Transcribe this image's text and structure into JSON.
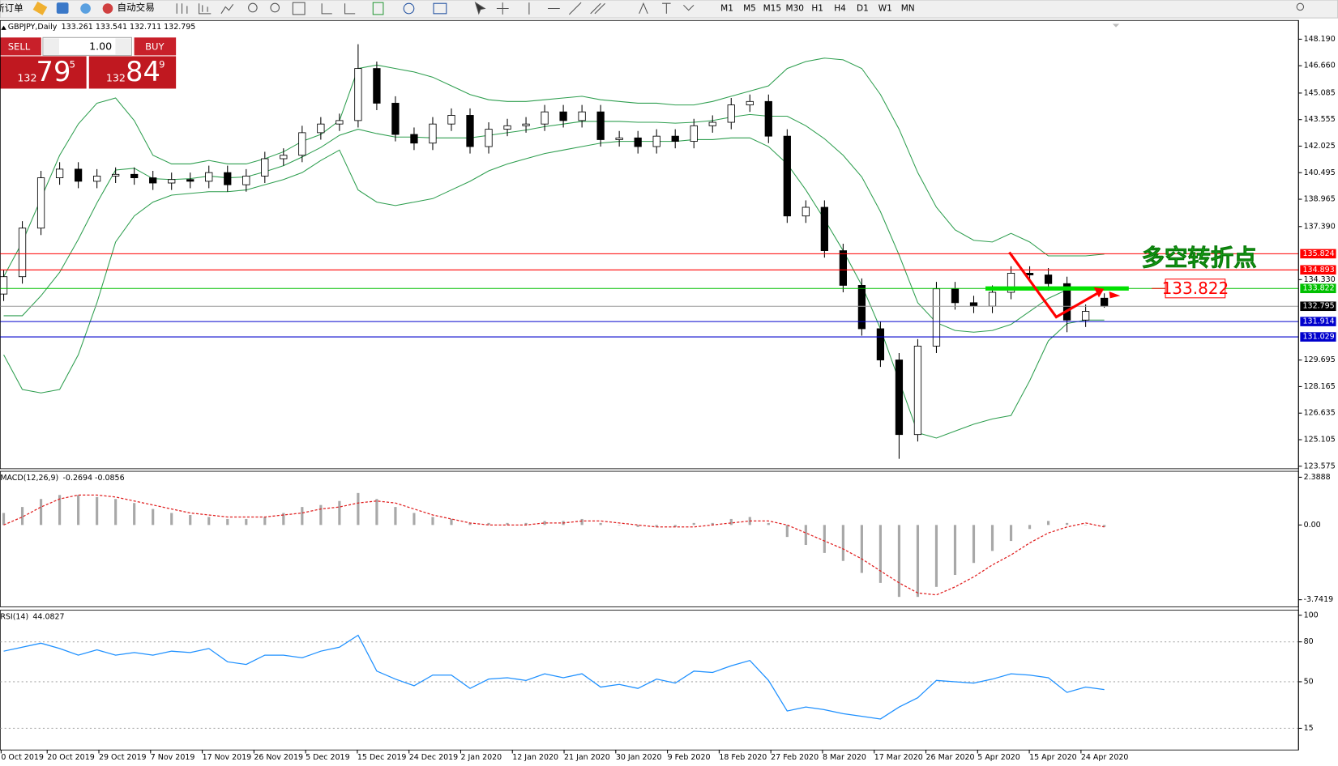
{
  "toolbar": {
    "new_order": "新订单",
    "auto_trading": "自动交易",
    "timeframes": [
      "M1",
      "M5",
      "M15",
      "M30",
      "H1",
      "H4",
      "D1",
      "W1",
      "MN"
    ]
  },
  "trade_panel": {
    "sell": "SELL",
    "buy": "BUY",
    "lots": "1.00",
    "sell_price": {
      "big": "132",
      "main": "79",
      "pip": "5"
    },
    "buy_price": {
      "big": "132",
      "main": "84",
      "pip": "9"
    }
  },
  "chart_data": [
    {
      "type": "candlestick",
      "title": "GBPJPY,Daily",
      "header_values": [
        133.261,
        133.541,
        132.711,
        132.795
      ],
      "open": [
        133.5,
        134.5,
        137.3,
        140.2,
        140.7,
        140.0,
        140.3,
        140.4,
        140.2,
        139.9,
        140.1,
        140.0,
        140.5,
        139.8,
        140.3,
        141.3,
        141.5,
        142.8,
        143.3,
        143.5,
        146.5,
        144.5,
        142.7,
        142.2,
        143.3,
        143.8,
        142.0,
        143.0,
        143.2,
        143.3,
        144.0,
        143.5,
        144.0,
        142.4,
        142.5,
        142.0,
        142.6,
        142.3,
        143.2,
        143.4,
        144.4,
        144.6,
        142.6,
        138.0,
        138.5,
        136.0,
        134.0,
        131.5,
        129.7,
        125.4,
        130.5,
        133.8,
        133.0,
        132.8,
        133.6,
        134.7,
        134.6,
        134.1,
        132.0,
        133.261
      ],
      "high": [
        134.9,
        137.7,
        140.6,
        141.1,
        141.1,
        140.7,
        140.8,
        140.8,
        140.6,
        140.5,
        140.5,
        140.9,
        140.9,
        140.7,
        141.7,
        141.9,
        143.2,
        143.7,
        143.9,
        147.9,
        146.9,
        144.9,
        143.1,
        143.7,
        144.2,
        144.2,
        143.4,
        143.6,
        143.7,
        144.4,
        144.4,
        144.4,
        144.4,
        142.9,
        142.9,
        143.0,
        143.0,
        143.6,
        143.8,
        144.8,
        145.0,
        145.0,
        143.0,
        138.9,
        138.9,
        136.4,
        134.4,
        131.9,
        130.1,
        130.9,
        134.2,
        134.2,
        133.4,
        134.0,
        135.1,
        135.1,
        135.0,
        134.5,
        132.9,
        133.541
      ],
      "low": [
        133.1,
        134.1,
        136.9,
        139.8,
        139.6,
        139.6,
        139.9,
        139.8,
        139.5,
        139.5,
        139.6,
        139.6,
        139.4,
        139.4,
        139.9,
        140.9,
        141.1,
        142.4,
        142.9,
        143.1,
        144.1,
        142.3,
        141.8,
        141.8,
        142.9,
        141.6,
        141.6,
        142.6,
        142.8,
        142.9,
        143.1,
        143.1,
        142.0,
        142.0,
        141.6,
        141.6,
        141.9,
        141.9,
        142.8,
        143.0,
        144.0,
        142.2,
        137.6,
        137.6,
        135.6,
        133.6,
        131.1,
        129.3,
        124.0,
        125.0,
        130.1,
        132.6,
        132.4,
        132.4,
        133.2,
        134.2,
        133.7,
        131.3,
        131.6,
        132.711
      ],
      "close": [
        134.5,
        137.3,
        140.2,
        140.7,
        140.0,
        140.3,
        140.4,
        140.2,
        139.9,
        140.1,
        140.0,
        140.5,
        139.8,
        140.3,
        141.3,
        141.5,
        142.8,
        143.3,
        143.5,
        146.5,
        144.5,
        142.7,
        142.2,
        143.3,
        143.8,
        142.0,
        143.0,
        143.2,
        143.3,
        144.0,
        143.5,
        144.0,
        142.4,
        142.5,
        142.0,
        142.6,
        142.3,
        143.2,
        143.4,
        144.4,
        144.6,
        142.6,
        138.0,
        138.5,
        136.0,
        134.0,
        131.5,
        129.7,
        125.4,
        130.5,
        133.8,
        133.0,
        132.8,
        133.6,
        134.7,
        134.6,
        134.1,
        132.0,
        132.5,
        132.795
      ],
      "series": [
        {
          "color": "#2e9e4f",
          "values": [
            134.5,
            136.5,
            139,
            141.5,
            143.3,
            144.5,
            144.8,
            143.5,
            141.5,
            141.0,
            141.0,
            141.2,
            141.0,
            141.0,
            141.3,
            141.7,
            142.3,
            142.7,
            143.5,
            146.5,
            146.7,
            146.5,
            146.3,
            146.0,
            145.5,
            145.0,
            144.7,
            144.6,
            144.6,
            144.7,
            144.8,
            144.9,
            144.7,
            144.6,
            144.5,
            144.5,
            144.4,
            144.4,
            144.6,
            144.9,
            145.2,
            145.5,
            146.5,
            146.9,
            147.1,
            147.0,
            146.5,
            145.0,
            143.0,
            140.5,
            138.5,
            137.2,
            136.6,
            136.5,
            137.0,
            136.5,
            135.7,
            135.7,
            135.7,
            135.8
          ]
        },
        {
          "color": "#2e9e4f",
          "values": [
            132.25,
            132.25,
            133.4,
            134.75,
            136.65,
            138.75,
            140.65,
            140.75,
            140.15,
            140.1,
            140.15,
            140.3,
            140.2,
            140.25,
            140.55,
            140.9,
            141.4,
            141.95,
            142.65,
            143,
            142.75,
            142.55,
            142.55,
            142.5,
            142.5,
            142.5,
            142.65,
            142.8,
            142.95,
            143.15,
            143.3,
            143.45,
            143.45,
            143.45,
            143.4,
            143.4,
            143.35,
            143.4,
            143.5,
            143.7,
            143.85,
            143.75,
            143.75,
            143.2,
            142.45,
            141.5,
            140.25,
            138.25,
            135.75,
            133,
            131.85,
            131.4,
            131.3,
            131.4,
            131.75,
            132.5,
            133.25,
            133.75,
            133.85,
            133.9
          ]
        },
        {
          "color": "#2e9e4f",
          "values": [
            130,
            128,
            127.8,
            128,
            130,
            133,
            136.5,
            138.0,
            138.8,
            139.2,
            139.3,
            139.4,
            139.4,
            139.5,
            139.8,
            140.1,
            140.5,
            141.2,
            141.8,
            139.5,
            138.8,
            138.6,
            138.8,
            139.0,
            139.5,
            140.0,
            140.6,
            141.0,
            141.3,
            141.6,
            141.8,
            142.0,
            142.2,
            142.3,
            142.3,
            142.3,
            142.3,
            142.4,
            142.4,
            142.5,
            142.5,
            142.0,
            141.0,
            139.5,
            137.8,
            136.0,
            134.0,
            131.5,
            128.5,
            125.5,
            125.2,
            125.6,
            126.0,
            126.3,
            126.5,
            128.5,
            130.8,
            131.8,
            132.0,
            132.0
          ]
        }
      ],
      "levels": [
        {
          "value": 135.824,
          "color": "#ff0000"
        },
        {
          "value": 134.893,
          "color": "#ff0000"
        },
        {
          "value": 133.822,
          "color": "#00c000"
        },
        {
          "value": 132.795,
          "color": "#9a9a9a"
        },
        {
          "value": 131.914,
          "color": "#0000cc"
        },
        {
          "value": 131.029,
          "color": "#0000cc"
        }
      ],
      "annotation": "多空转折点",
      "ylim": [
        123.43,
        149.27
      ],
      "yticks": [
        {
          "value": 148.19,
          "label": "148.190"
        },
        {
          "value": 146.66,
          "label": "146.660"
        },
        145.085,
        143.555,
        142.025,
        140.495,
        138.965,
        {
          "value": 137.39,
          "label": "137.390"
        },
        {
          "value": 134.33,
          "label": "134.330"
        },
        129.695,
        128.165,
        126.635,
        125.105,
        123.575
      ]
    },
    {
      "type": "macd",
      "title": "MACD(12,26,9)",
      "header_values": [
        -0.2694,
        -0.0856
      ],
      "series": [
        {
          "name": "histogram",
          "color": "#a8a8a8",
          "values": [
            0.6,
            0.9,
            1.3,
            1.5,
            1.5,
            1.4,
            1.3,
            1.1,
            0.8,
            0.6,
            0.5,
            0.4,
            0.3,
            0.3,
            0.4,
            0.6,
            0.9,
            1.0,
            1.2,
            1.6,
            1.3,
            0.9,
            0.6,
            0.4,
            0.3,
            0.1,
            0.1,
            0.1,
            0.1,
            0.2,
            0.2,
            0.3,
            0.1,
            0.0,
            -0.1,
            -0.1,
            -0.1,
            0.1,
            0.1,
            0.3,
            0.4,
            0.1,
            -0.6,
            -1.0,
            -1.4,
            -1.8,
            -2.4,
            -2.9,
            -3.6,
            -3.6,
            -3.1,
            -2.5,
            -1.9,
            -1.3,
            -0.8,
            -0.2,
            0.2,
            0.1,
            0.0,
            -0.1
          ]
        },
        {
          "name": "signal",
          "color": "#e02020",
          "values": [
            0.0,
            0.4,
            0.9,
            1.3,
            1.5,
            1.5,
            1.4,
            1.2,
            1.0,
            0.8,
            0.6,
            0.5,
            0.4,
            0.4,
            0.4,
            0.5,
            0.6,
            0.8,
            0.9,
            1.1,
            1.2,
            1.1,
            0.8,
            0.5,
            0.3,
            0.1,
            0.0,
            0.0,
            0.0,
            0.1,
            0.1,
            0.2,
            0.2,
            0.1,
            0.0,
            -0.1,
            -0.1,
            -0.1,
            0.0,
            0.1,
            0.2,
            0.2,
            0.0,
            -0.4,
            -0.8,
            -1.2,
            -1.7,
            -2.3,
            -2.9,
            -3.4,
            -3.5,
            -3.1,
            -2.6,
            -2.0,
            -1.5,
            -0.9,
            -0.4,
            -0.1,
            0.1,
            -0.1
          ]
        }
      ],
      "ylim": [
        -4.096,
        2.687
      ],
      "yticks": [
        2.3888,
        {
          "value": 0,
          "label": "0.00"
        },
        -3.7419
      ]
    },
    {
      "type": "rsi",
      "title": "RSI(14)",
      "header_values": [
        44.0827
      ],
      "series": [
        {
          "color": "#1e90ff",
          "values": [
            73,
            76,
            79,
            75,
            70,
            74,
            70,
            72,
            70,
            73,
            72,
            75,
            65,
            63,
            70,
            70,
            68,
            73,
            76,
            85,
            58,
            52,
            47,
            55,
            55,
            45,
            52,
            53,
            51,
            56,
            53,
            56,
            46,
            48,
            45,
            52,
            49,
            58,
            57,
            62,
            66,
            51,
            28,
            31,
            29,
            26,
            24,
            22,
            31,
            38,
            51,
            50,
            49,
            52,
            56,
            55,
            53,
            42,
            46,
            44.08
          ]
        }
      ],
      "ylim": [
        -1.3,
        103.8
      ],
      "yticks": [
        100,
        80,
        50,
        15
      ],
      "x_labels": [
        "0 Oct 2019",
        "20 Oct 2019",
        "29 Oct 2019",
        "7 Nov 2019",
        "17 Nov 2019",
        "26 Nov 2019",
        "5 Dec 2019",
        "15 Dec 2019",
        "24 Dec 2019",
        "2 Jan 2020",
        "12 Jan 2020",
        "21 Jan 2020",
        "30 Jan 2020",
        "9 Feb 2020",
        "18 Feb 2020",
        "27 Feb 2020",
        "8 Mar 2020",
        "17 Mar 2020",
        "26 Mar 2020",
        "5 Apr 2020",
        "15 Apr 2020",
        "24 Apr 2020"
      ]
    }
  ]
}
